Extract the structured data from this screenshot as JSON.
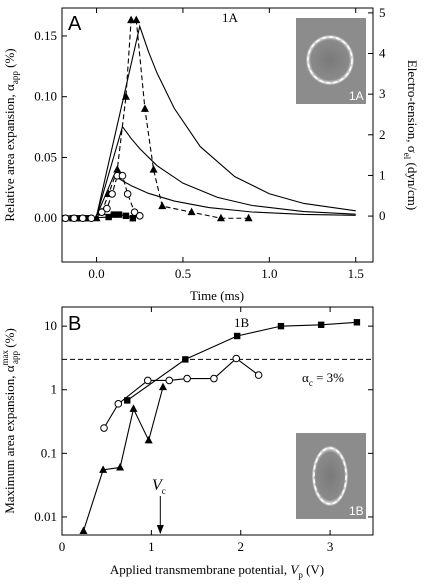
{
  "chart_data": [
    {
      "type": "line",
      "panel_label": "A",
      "peak_label": "1A",
      "inset_label": "1A",
      "xlabel": [
        "Time (ms)"
      ],
      "ylabel": [
        "Relative area expansion, α",
        "app",
        " (%)"
      ],
      "y2label": [
        "Electro-tension, σ",
        "el",
        " (dyn/cm)"
      ],
      "xlim": [
        -0.2,
        1.6
      ],
      "ylim": [
        -0.036,
        0.173
      ],
      "y2lim": [
        -1.13,
        5.12
      ],
      "xticks": [
        {
          "value": 0,
          "label": "0.0"
        },
        {
          "value": 0.5,
          "label": "0.5"
        },
        {
          "value": 1,
          "label": "1.0"
        },
        {
          "value": 1.5,
          "label": "1.5"
        }
      ],
      "yticks": [
        {
          "value": 0,
          "label": "0.00"
        },
        {
          "value": 0.05,
          "label": "0.05"
        },
        {
          "value": 0.1,
          "label": "0.10"
        },
        {
          "value": 0.15,
          "label": "0.15"
        }
      ],
      "y2ticks": [
        0,
        1,
        2,
        3,
        4,
        5
      ],
      "series": [
        {
          "color": "#000000",
          "marker": "none",
          "line": "solid",
          "axis": "y2",
          "x": [
            0,
            0.25,
            0.3,
            0.35,
            0.45,
            0.6,
            0.8,
            1.0,
            1.2,
            1.5
          ],
          "values": [
            0,
            4.67,
            4.05,
            3.52,
            2.65,
            1.71,
            0.97,
            0.55,
            0.31,
            0.13
          ]
        },
        {
          "color": "#000000",
          "marker": "none",
          "line": "solid",
          "axis": "y2",
          "x": [
            0,
            0.15,
            0.2,
            0.25,
            0.35,
            0.5,
            0.7,
            0.9,
            1.2,
            1.5
          ],
          "values": [
            0,
            2.2,
            1.91,
            1.66,
            1.24,
            0.81,
            0.46,
            0.26,
            0.11,
            0.047
          ]
        },
        {
          "color": "#000000",
          "marker": "none",
          "line": "solid",
          "axis": "y2",
          "x": [
            0,
            0.1,
            0.15,
            0.2,
            0.3,
            0.45,
            0.65,
            0.9,
            1.2,
            1.5
          ],
          "values": [
            0,
            1.0,
            0.87,
            0.75,
            0.56,
            0.37,
            0.21,
            0.1,
            0.04,
            0.018
          ]
        },
        {
          "color": "#000000",
          "marker": "square",
          "line": "solid",
          "x": [
            -0.18,
            -0.14,
            -0.1,
            -0.06,
            0.07,
            0.1,
            0.13,
            0.17,
            0.21
          ],
          "values": [
            0,
            0,
            0,
            0,
            0.001,
            0.003,
            0.003,
            0.002,
            0
          ]
        },
        {
          "color": "#000000",
          "marker": "triangle",
          "line": "dashed",
          "x": [
            0.0,
            0.03,
            0.07,
            0.12,
            0.17,
            0.2,
            0.23,
            0.28,
            0.33,
            0.38,
            0.55,
            0.72,
            0.88
          ],
          "values": [
            0,
            0.005,
            0.02,
            0.04,
            0.1,
            0.163,
            0.163,
            0.09,
            0.04,
            0.01,
            0.005,
            0,
            0
          ]
        },
        {
          "color": "#000000",
          "marker": "circle",
          "line": "dashed",
          "x": [
            -0.18,
            -0.13,
            -0.08,
            -0.03,
            0.03,
            0.06,
            0.09,
            0.12,
            0.15,
            0.18,
            0.22,
            0.25
          ],
          "values": [
            0,
            0,
            0,
            0,
            0.005,
            0.008,
            0.02,
            0.035,
            0.035,
            0.02,
            0.005,
            0.002
          ]
        }
      ]
    },
    {
      "type": "line",
      "panel_label": "B",
      "series_label": "1B",
      "inset_label": "1B",
      "ylog": true,
      "xlabel": [
        "Applied transmembrane potential, ",
        "V",
        "p",
        " (V)"
      ],
      "ylabel": [
        "Maximum area expansion, α",
        "max",
        "app",
        " (%)"
      ],
      "threshold": 3,
      "threshold_label": [
        "α",
        "c",
        " = 3%"
      ],
      "vc": 1.1,
      "vc_label": [
        "V",
        "c"
      ],
      "xlim": [
        0,
        3.48
      ],
      "ylim": [
        0.0052,
        20
      ],
      "xticks": [
        0,
        1,
        2,
        3
      ],
      "yticks": [
        0.01,
        0.1,
        1,
        10
      ],
      "series": [
        {
          "color": "#000000",
          "marker": "square",
          "line": "solid",
          "x": [
            0.73,
            1.38,
            1.96,
            2.45,
            2.9,
            3.3
          ],
          "values": [
            0.68,
            3.0,
            7.0,
            10,
            10.5,
            11.5
          ]
        },
        {
          "color": "#000000",
          "marker": "triangle",
          "line": "solid",
          "x": [
            0.24,
            0.46,
            0.65,
            0.8,
            0.97,
            1.13
          ],
          "values": [
            0.006,
            0.055,
            0.06,
            0.5,
            0.16,
            1.1
          ]
        },
        {
          "color": "#000000",
          "marker": "circle",
          "line": "solid",
          "x": [
            0.47,
            0.63,
            0.96,
            1.2,
            1.4,
            1.7,
            1.95,
            2.2
          ],
          "values": [
            0.25,
            0.6,
            1.4,
            1.4,
            1.5,
            1.5,
            3.1,
            1.7
          ]
        }
      ]
    }
  ]
}
